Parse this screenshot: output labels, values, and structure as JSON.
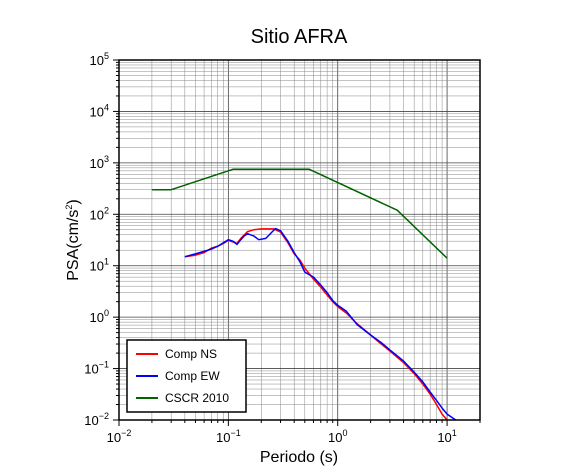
{
  "chart_data": {
    "type": "line",
    "title": "Sitio AFRA",
    "xlabel": "Periodo (s)",
    "ylabel_base": "PSA(cm/s",
    "ylabel_sup": "2",
    "ylabel_close": ")",
    "xscale": "log",
    "yscale": "log",
    "xlim": [
      0.01,
      20
    ],
    "ylim": [
      0.01,
      100000
    ],
    "grid": true,
    "legend_position": "bottom-left",
    "x_ticks": [
      {
        "value": 0.01,
        "base": "10",
        "exp": "−2"
      },
      {
        "value": 0.1,
        "base": "10",
        "exp": "−1"
      },
      {
        "value": 1,
        "base": "10",
        "exp": "0"
      },
      {
        "value": 10,
        "base": "10",
        "exp": "1"
      }
    ],
    "y_ticks": [
      {
        "value": 0.01,
        "base": "10",
        "exp": "−2"
      },
      {
        "value": 0.1,
        "base": "10",
        "exp": "−1"
      },
      {
        "value": 1,
        "base": "10",
        "exp": "0"
      },
      {
        "value": 10,
        "base": "10",
        "exp": "1"
      },
      {
        "value": 100,
        "base": "10",
        "exp": "2"
      },
      {
        "value": 1000,
        "base": "10",
        "exp": "3"
      },
      {
        "value": 10000,
        "base": "10",
        "exp": "4"
      },
      {
        "value": 100000,
        "base": "10",
        "exp": "5"
      }
    ],
    "series": [
      {
        "name": "Comp NS",
        "color": "#ff0000",
        "points": [
          [
            0.04,
            15
          ],
          [
            0.05,
            16
          ],
          [
            0.06,
            18
          ],
          [
            0.07,
            22
          ],
          [
            0.08,
            24
          ],
          [
            0.09,
            27
          ],
          [
            0.1,
            31
          ],
          [
            0.11,
            29
          ],
          [
            0.12,
            27
          ],
          [
            0.13,
            34
          ],
          [
            0.14,
            40
          ],
          [
            0.15,
            46
          ],
          [
            0.17,
            50
          ],
          [
            0.2,
            52
          ],
          [
            0.23,
            52
          ],
          [
            0.26,
            52
          ],
          [
            0.3,
            45
          ],
          [
            0.35,
            28
          ],
          [
            0.4,
            17
          ],
          [
            0.45,
            13
          ],
          [
            0.5,
            9
          ],
          [
            0.6,
            5.5
          ],
          [
            0.7,
            3.8
          ],
          [
            0.8,
            2.7
          ],
          [
            0.9,
            2.0
          ],
          [
            1.0,
            1.6
          ],
          [
            1.2,
            1.2
          ],
          [
            1.5,
            0.75
          ],
          [
            2.0,
            0.45
          ],
          [
            2.5,
            0.3
          ],
          [
            3.0,
            0.22
          ],
          [
            4.0,
            0.13
          ],
          [
            5.0,
            0.08
          ],
          [
            6.0,
            0.05
          ],
          [
            7.0,
            0.032
          ],
          [
            8.0,
            0.02
          ],
          [
            9.0,
            0.013
          ],
          [
            10.0,
            0.01
          ],
          [
            12.0,
            0.009
          ]
        ]
      },
      {
        "name": "Comp EW",
        "color": "#0000ff",
        "points": [
          [
            0.04,
            15
          ],
          [
            0.05,
            17
          ],
          [
            0.06,
            19
          ],
          [
            0.07,
            21
          ],
          [
            0.08,
            24
          ],
          [
            0.09,
            28
          ],
          [
            0.1,
            32
          ],
          [
            0.11,
            30
          ],
          [
            0.12,
            26
          ],
          [
            0.13,
            32
          ],
          [
            0.14,
            38
          ],
          [
            0.15,
            42
          ],
          [
            0.17,
            38
          ],
          [
            0.19,
            32
          ],
          [
            0.22,
            34
          ],
          [
            0.25,
            45
          ],
          [
            0.27,
            53
          ],
          [
            0.3,
            48
          ],
          [
            0.35,
            30
          ],
          [
            0.4,
            18
          ],
          [
            0.45,
            12
          ],
          [
            0.5,
            7.5
          ],
          [
            0.6,
            6
          ],
          [
            0.7,
            4.2
          ],
          [
            0.8,
            3.0
          ],
          [
            0.9,
            2.1
          ],
          [
            1.0,
            1.7
          ],
          [
            1.2,
            1.3
          ],
          [
            1.5,
            0.72
          ],
          [
            2.0,
            0.45
          ],
          [
            2.5,
            0.32
          ],
          [
            3.0,
            0.23
          ],
          [
            4.0,
            0.14
          ],
          [
            5.0,
            0.085
          ],
          [
            6.0,
            0.055
          ],
          [
            7.0,
            0.035
          ],
          [
            8.0,
            0.024
          ],
          [
            9.0,
            0.017
          ],
          [
            10.0,
            0.013
          ],
          [
            12.0,
            0.01
          ]
        ]
      },
      {
        "name": "CSCR 2010",
        "color": "#006400",
        "points": [
          [
            0.02,
            300
          ],
          [
            0.03,
            300
          ],
          [
            0.11,
            750
          ],
          [
            0.55,
            750
          ],
          [
            3.5,
            120
          ],
          [
            10.0,
            14
          ]
        ]
      }
    ]
  }
}
